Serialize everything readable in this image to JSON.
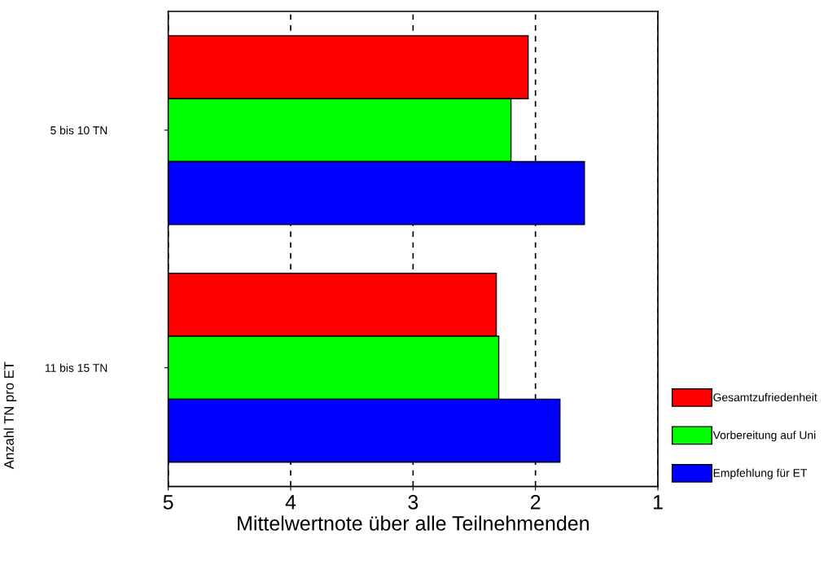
{
  "chart_data": {
    "type": "bar",
    "orientation": "horizontal",
    "categories": [
      "5 bis 10 TN",
      "11 bis 15 TN"
    ],
    "series": [
      {
        "name": "Gesamtzufriedenheit",
        "color": "#ff0000",
        "base": [
          5,
          5
        ],
        "values": [
          -2.94,
          -2.68
        ]
      },
      {
        "name": "Vorbereitung auf Uni",
        "color": "#00ff00",
        "base": [
          5,
          5
        ],
        "values": [
          -2.8,
          -2.7
        ]
      },
      {
        "name": "Empfehlung für ET",
        "color": "#0000ff",
        "base": [
          5,
          5
        ],
        "values": [
          -3.4,
          -3.2
        ]
      }
    ],
    "xlim": [
      5,
      1
    ],
    "xticks": [
      5,
      4,
      3,
      2,
      1
    ],
    "xlabel": "Mittelwertnote über alle Teilnehmenden",
    "ylabel": "Anzahl TN pro ET",
    "grid": "x",
    "legend": "bottom right"
  }
}
